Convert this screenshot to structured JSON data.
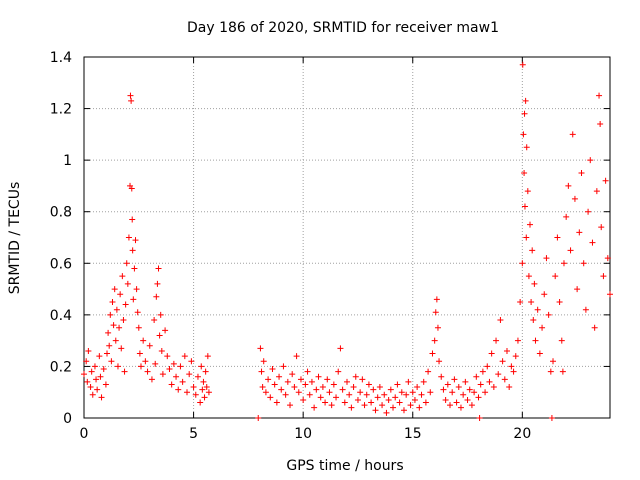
{
  "chart_data": {
    "type": "scatter",
    "title": "Day 186 of 2020, SRMTID for receiver maw1",
    "xlabel": "GPS time / hours",
    "ylabel": "SRMTID / TECUs",
    "xlim": [
      0,
      24
    ],
    "ylim": [
      0,
      1.4
    ],
    "xticks": [
      0,
      5,
      10,
      15,
      20
    ],
    "xtick_labels": [
      "0",
      "5",
      "10",
      "15",
      "20"
    ],
    "yticks": [
      0,
      0.2,
      0.4,
      0.6,
      0.8,
      1.0,
      1.2,
      1.4
    ],
    "ytick_labels": [
      "0",
      "0.2",
      "0.4",
      "0.6",
      "0.8",
      "1",
      "1.2",
      "1.4"
    ],
    "grid": true,
    "marker": "+",
    "series": [
      {
        "name": "maw1",
        "color": "#ff0000",
        "points": [
          [
            0.0,
            0.17
          ],
          [
            0.1,
            0.22
          ],
          [
            0.15,
            0.14
          ],
          [
            0.2,
            0.26
          ],
          [
            0.3,
            0.12
          ],
          [
            0.35,
            0.18
          ],
          [
            0.4,
            0.09
          ],
          [
            0.5,
            0.2
          ],
          [
            0.55,
            0.15
          ],
          [
            0.6,
            0.11
          ],
          [
            0.7,
            0.24
          ],
          [
            0.75,
            0.16
          ],
          [
            0.8,
            0.08
          ],
          [
            0.9,
            0.19
          ],
          [
            1.0,
            0.13
          ],
          [
            1.05,
            0.25
          ],
          [
            1.1,
            0.33
          ],
          [
            1.15,
            0.28
          ],
          [
            1.2,
            0.4
          ],
          [
            1.25,
            0.22
          ],
          [
            1.3,
            0.45
          ],
          [
            1.35,
            0.36
          ],
          [
            1.4,
            0.5
          ],
          [
            1.45,
            0.3
          ],
          [
            1.5,
            0.42
          ],
          [
            1.55,
            0.2
          ],
          [
            1.6,
            0.35
          ],
          [
            1.65,
            0.48
          ],
          [
            1.7,
            0.27
          ],
          [
            1.75,
            0.55
          ],
          [
            1.8,
            0.38
          ],
          [
            1.85,
            0.18
          ],
          [
            1.9,
            0.44
          ],
          [
            1.95,
            0.6
          ],
          [
            2.0,
            0.52
          ],
          [
            2.05,
            0.7
          ],
          [
            2.1,
            0.9
          ],
          [
            2.12,
            1.25
          ],
          [
            2.15,
            1.23
          ],
          [
            2.18,
            0.89
          ],
          [
            2.2,
            0.77
          ],
          [
            2.22,
            0.65
          ],
          [
            2.25,
            0.46
          ],
          [
            2.3,
            0.58
          ],
          [
            2.35,
            0.69
          ],
          [
            2.4,
            0.5
          ],
          [
            2.45,
            0.41
          ],
          [
            2.5,
            0.35
          ],
          [
            2.55,
            0.25
          ],
          [
            2.6,
            0.2
          ],
          [
            2.7,
            0.3
          ],
          [
            2.8,
            0.22
          ],
          [
            2.9,
            0.18
          ],
          [
            3.0,
            0.28
          ],
          [
            3.1,
            0.15
          ],
          [
            3.2,
            0.38
          ],
          [
            3.25,
            0.21
          ],
          [
            3.3,
            0.47
          ],
          [
            3.35,
            0.52
          ],
          [
            3.4,
            0.58
          ],
          [
            3.45,
            0.32
          ],
          [
            3.5,
            0.4
          ],
          [
            3.55,
            0.26
          ],
          [
            3.6,
            0.17
          ],
          [
            3.7,
            0.34
          ],
          [
            3.8,
            0.24
          ],
          [
            3.9,
            0.19
          ],
          [
            4.0,
            0.13
          ],
          [
            4.1,
            0.21
          ],
          [
            4.2,
            0.16
          ],
          [
            4.3,
            0.11
          ],
          [
            4.4,
            0.2
          ],
          [
            4.5,
            0.14
          ],
          [
            4.6,
            0.24
          ],
          [
            4.7,
            0.1
          ],
          [
            4.8,
            0.17
          ],
          [
            4.9,
            0.22
          ],
          [
            5.0,
            0.12
          ],
          [
            5.1,
            0.09
          ],
          [
            5.2,
            0.16
          ],
          [
            5.3,
            0.06
          ],
          [
            5.35,
            0.2
          ],
          [
            5.4,
            0.11
          ],
          [
            5.45,
            0.14
          ],
          [
            5.5,
            0.08
          ],
          [
            5.55,
            0.18
          ],
          [
            5.6,
            0.12
          ],
          [
            5.65,
            0.24
          ],
          [
            5.7,
            0.1
          ],
          [
            7.95,
            0.0
          ],
          [
            8.05,
            0.27
          ],
          [
            8.1,
            0.18
          ],
          [
            8.15,
            0.12
          ],
          [
            8.2,
            0.22
          ],
          [
            8.3,
            0.1
          ],
          [
            8.4,
            0.15
          ],
          [
            8.5,
            0.08
          ],
          [
            8.6,
            0.19
          ],
          [
            8.7,
            0.13
          ],
          [
            8.8,
            0.06
          ],
          [
            8.9,
            0.16
          ],
          [
            9.0,
            0.11
          ],
          [
            9.1,
            0.2
          ],
          [
            9.2,
            0.09
          ],
          [
            9.3,
            0.14
          ],
          [
            9.4,
            0.05
          ],
          [
            9.5,
            0.17
          ],
          [
            9.6,
            0.12
          ],
          [
            9.7,
            0.24
          ],
          [
            9.8,
            0.1
          ],
          [
            9.9,
            0.15
          ],
          [
            10.0,
            0.07
          ],
          [
            10.1,
            0.13
          ],
          [
            10.2,
            0.18
          ],
          [
            10.3,
            0.09
          ],
          [
            10.4,
            0.14
          ],
          [
            10.5,
            0.04
          ],
          [
            10.6,
            0.11
          ],
          [
            10.7,
            0.16
          ],
          [
            10.8,
            0.08
          ],
          [
            10.9,
            0.12
          ],
          [
            11.0,
            0.06
          ],
          [
            11.1,
            0.15
          ],
          [
            11.2,
            0.1
          ],
          [
            11.3,
            0.05
          ],
          [
            11.4,
            0.13
          ],
          [
            11.5,
            0.08
          ],
          [
            11.6,
            0.18
          ],
          [
            11.7,
            0.27
          ],
          [
            11.8,
            0.11
          ],
          [
            11.9,
            0.06
          ],
          [
            12.0,
            0.14
          ],
          [
            12.1,
            0.09
          ],
          [
            12.2,
            0.04
          ],
          [
            12.3,
            0.12
          ],
          [
            12.4,
            0.16
          ],
          [
            12.5,
            0.07
          ],
          [
            12.6,
            0.1
          ],
          [
            12.7,
            0.15
          ],
          [
            12.8,
            0.05
          ],
          [
            12.9,
            0.09
          ],
          [
            13.0,
            0.13
          ],
          [
            13.1,
            0.06
          ],
          [
            13.2,
            0.11
          ],
          [
            13.3,
            0.03
          ],
          [
            13.4,
            0.08
          ],
          [
            13.5,
            0.12
          ],
          [
            13.6,
            0.05
          ],
          [
            13.7,
            0.09
          ],
          [
            13.8,
            0.02
          ],
          [
            13.9,
            0.07
          ],
          [
            14.0,
            0.11
          ],
          [
            14.1,
            0.04
          ],
          [
            14.2,
            0.08
          ],
          [
            14.3,
            0.13
          ],
          [
            14.4,
            0.06
          ],
          [
            14.5,
            0.1
          ],
          [
            14.6,
            0.03
          ],
          [
            14.7,
            0.09
          ],
          [
            14.8,
            0.14
          ],
          [
            14.9,
            0.05
          ],
          [
            15.0,
            0.1
          ],
          [
            15.1,
            0.07
          ],
          [
            15.2,
            0.12
          ],
          [
            15.3,
            0.04
          ],
          [
            15.4,
            0.09
          ],
          [
            15.5,
            0.14
          ],
          [
            15.6,
            0.06
          ],
          [
            15.7,
            0.18
          ],
          [
            15.8,
            0.1
          ],
          [
            15.9,
            0.25
          ],
          [
            16.0,
            0.3
          ],
          [
            16.05,
            0.41
          ],
          [
            16.1,
            0.46
          ],
          [
            16.15,
            0.35
          ],
          [
            16.2,
            0.22
          ],
          [
            16.3,
            0.16
          ],
          [
            16.4,
            0.11
          ],
          [
            16.5,
            0.07
          ],
          [
            16.6,
            0.13
          ],
          [
            16.7,
            0.05
          ],
          [
            16.8,
            0.1
          ],
          [
            16.9,
            0.15
          ],
          [
            17.0,
            0.06
          ],
          [
            17.1,
            0.12
          ],
          [
            17.2,
            0.04
          ],
          [
            17.3,
            0.09
          ],
          [
            17.4,
            0.14
          ],
          [
            17.5,
            0.07
          ],
          [
            17.6,
            0.11
          ],
          [
            17.7,
            0.05
          ],
          [
            17.8,
            0.1
          ],
          [
            17.9,
            0.16
          ],
          [
            18.0,
            0.08
          ],
          [
            18.05,
            0.0
          ],
          [
            18.1,
            0.13
          ],
          [
            18.2,
            0.18
          ],
          [
            18.3,
            0.1
          ],
          [
            18.4,
            0.2
          ],
          [
            18.5,
            0.14
          ],
          [
            18.6,
            0.25
          ],
          [
            18.7,
            0.12
          ],
          [
            18.8,
            0.3
          ],
          [
            18.9,
            0.17
          ],
          [
            19.0,
            0.38
          ],
          [
            19.1,
            0.22
          ],
          [
            19.2,
            0.15
          ],
          [
            19.3,
            0.26
          ],
          [
            19.4,
            0.12
          ],
          [
            19.5,
            0.2
          ],
          [
            19.6,
            0.18
          ],
          [
            19.7,
            0.24
          ],
          [
            19.8,
            0.3
          ],
          [
            19.9,
            0.45
          ],
          [
            20.0,
            0.6
          ],
          [
            20.02,
            1.37
          ],
          [
            20.05,
            1.1
          ],
          [
            20.08,
            0.95
          ],
          [
            20.1,
            1.18
          ],
          [
            20.12,
            0.82
          ],
          [
            20.15,
            1.23
          ],
          [
            20.18,
            0.7
          ],
          [
            20.2,
            1.05
          ],
          [
            20.25,
            0.88
          ],
          [
            20.3,
            0.55
          ],
          [
            20.35,
            0.75
          ],
          [
            20.4,
            0.45
          ],
          [
            20.45,
            0.65
          ],
          [
            20.5,
            0.38
          ],
          [
            20.55,
            0.52
          ],
          [
            20.6,
            0.3
          ],
          [
            20.7,
            0.42
          ],
          [
            20.8,
            0.25
          ],
          [
            20.9,
            0.35
          ],
          [
            21.0,
            0.48
          ],
          [
            21.1,
            0.62
          ],
          [
            21.2,
            0.4
          ],
          [
            21.3,
            0.18
          ],
          [
            21.35,
            0.0
          ],
          [
            21.4,
            0.22
          ],
          [
            21.5,
            0.55
          ],
          [
            21.6,
            0.7
          ],
          [
            21.7,
            0.45
          ],
          [
            21.8,
            0.3
          ],
          [
            21.85,
            0.18
          ],
          [
            21.9,
            0.6
          ],
          [
            22.0,
            0.78
          ],
          [
            22.1,
            0.9
          ],
          [
            22.2,
            0.65
          ],
          [
            22.3,
            1.1
          ],
          [
            22.4,
            0.85
          ],
          [
            22.5,
            0.5
          ],
          [
            22.6,
            0.72
          ],
          [
            22.7,
            0.95
          ],
          [
            22.8,
            0.6
          ],
          [
            22.9,
            0.42
          ],
          [
            23.0,
            0.8
          ],
          [
            23.1,
            1.0
          ],
          [
            23.2,
            0.68
          ],
          [
            23.3,
            0.35
          ],
          [
            23.4,
            0.88
          ],
          [
            23.5,
            1.25
          ],
          [
            23.55,
            1.14
          ],
          [
            23.6,
            0.74
          ],
          [
            23.7,
            0.55
          ],
          [
            23.8,
            0.92
          ],
          [
            23.9,
            0.62
          ],
          [
            24.0,
            0.48
          ]
        ]
      }
    ]
  }
}
